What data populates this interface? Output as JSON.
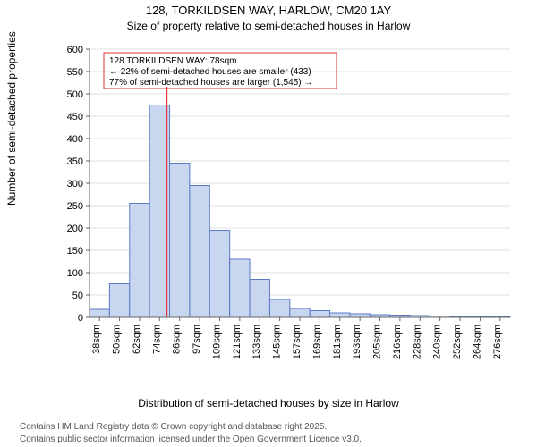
{
  "title_line1": "128, TORKILDSEN WAY, HARLOW, CM20 1AY",
  "title_line2": "Size of property relative to semi-detached houses in Harlow",
  "y_axis_label": "Number of semi-detached properties",
  "x_axis_label": "Distribution of semi-detached houses by size in Harlow",
  "footer_line1": "Contains HM Land Registry data © Crown copyright and database right 2025.",
  "footer_line2": "Contains public sector information licensed under the Open Government Licence v3.0.",
  "annotation": {
    "line1": "128 TORKILDSEN WAY: 78sqm",
    "line2": "← 22% of semi-detached houses are smaller (433)",
    "line3": "77% of semi-detached houses are larger (1,545) →"
  },
  "chart": {
    "type": "histogram",
    "background_color": "#ffffff",
    "grid_color": "#e0e0e0",
    "axis_color": "#666666",
    "bar_fill": "#c9d6f0",
    "bar_stroke": "#5a7ac7",
    "refline_color": "#d33333",
    "annotation_border": "#d33333",
    "title_fontsize": 13,
    "subtitle_fontsize": 12,
    "label_fontsize": 12,
    "tick_fontsize": 11,
    "footer_fontsize": 10,
    "annotation_fontsize": 10,
    "ylim": [
      0,
      600
    ],
    "ytick_step": 50,
    "x_categories": [
      "38sqm",
      "50sqm",
      "62sqm",
      "74sqm",
      "86sqm",
      "97sqm",
      "109sqm",
      "121sqm",
      "133sqm",
      "145sqm",
      "157sqm",
      "169sqm",
      "181sqm",
      "193sqm",
      "205sqm",
      "216sqm",
      "228sqm",
      "240sqm",
      "252sqm",
      "264sqm",
      "276sqm"
    ],
    "values": [
      18,
      75,
      255,
      475,
      345,
      295,
      195,
      130,
      85,
      40,
      20,
      15,
      10,
      8,
      6,
      5,
      4,
      3,
      2,
      2,
      1
    ],
    "reference_x_sqm": 78,
    "bar_gap_ratio": 0.0
  }
}
